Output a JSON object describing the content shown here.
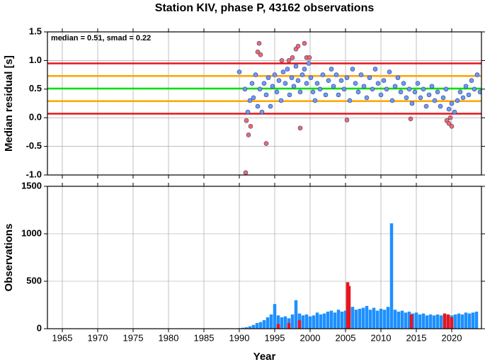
{
  "chart_data": [
    {
      "type": "scatter",
      "title": "Station KIV, phase P, 43162 observations",
      "annotation": "median = 0.51, smad = 0.22",
      "y_label": "Median residual [s]",
      "xlim": [
        1962.9,
        2024.2
      ],
      "xticks": [
        1965,
        1970,
        1975,
        1980,
        1985,
        1990,
        1995,
        2000,
        2005,
        2010,
        2015,
        2020
      ],
      "ylim": [
        -1.0,
        1.5
      ],
      "yticks": [
        {
          "value": -1.0,
          "label": "-1.0"
        },
        {
          "value": -0.5,
          "label": "-0.5"
        },
        {
          "value": 0.0,
          "label": "0.0"
        },
        {
          "value": 0.5,
          "label": "0.5"
        },
        {
          "value": 1.0,
          "label": "1.0"
        },
        {
          "value": 1.5,
          "label": "1.5"
        }
      ],
      "grid": true,
      "hlines": [
        {
          "value": 0.95,
          "color": "#e8141e"
        },
        {
          "value": 0.73,
          "color": "#ffa500"
        },
        {
          "value": 0.51,
          "color": "#00e000"
        },
        {
          "value": 0.29,
          "color": "#ffa500"
        },
        {
          "value": 0.07,
          "color": "#e8141e"
        }
      ],
      "series": [
        {
          "color": "#6b9cf0",
          "x": [
            1990.0,
            1990.8,
            1991.2,
            1991.5,
            1991.8,
            1992.0,
            1992.3,
            1992.6,
            1992.9,
            1993.2,
            1993.5,
            1993.8,
            1994.1,
            1994.4,
            1994.7,
            1995.0,
            1995.3,
            1995.6,
            1995.9,
            1996.2,
            1996.5,
            1996.8,
            1997.1,
            1997.4,
            1997.7,
            1998.0,
            1998.3,
            1998.6,
            1998.9,
            1999.2,
            1999.5,
            1999.8,
            2000.1,
            2000.4,
            2000.7,
            2001.0,
            2001.4,
            2001.8,
            2002.2,
            2002.6,
            2003.0,
            2003.3,
            2003.7,
            2004.0,
            2004.4,
            2004.8,
            2005.2,
            2005.6,
            2006.0,
            2006.4,
            2006.8,
            2007.2,
            2007.6,
            2008.0,
            2008.4,
            2008.8,
            2009.2,
            2009.6,
            2010.0,
            2010.4,
            2010.8,
            2011.2,
            2011.6,
            2012.0,
            2012.4,
            2012.8,
            2013.2,
            2013.6,
            2014.0,
            2014.4,
            2014.8,
            2015.2,
            2015.6,
            2016.0,
            2016.4,
            2016.8,
            2017.2,
            2017.6,
            2018.0,
            2018.4,
            2018.8,
            2019.2,
            2019.6,
            2020.0,
            2020.4,
            2020.8,
            2021.2,
            2021.6,
            2022.0,
            2022.4,
            2022.8,
            2023.2,
            2023.6,
            2024.0
          ],
          "values": [
            0.8,
            0.5,
            0.1,
            0.3,
            0.6,
            0.35,
            0.75,
            0.2,
            0.5,
            0.1,
            0.6,
            0.4,
            0.7,
            0.2,
            0.55,
            0.75,
            0.45,
            0.65,
            0.3,
            0.8,
            0.6,
            0.85,
            0.4,
            0.7,
            0.55,
            0.9,
            0.65,
            0.45,
            0.75,
            0.85,
            0.6,
            0.95,
            0.7,
            0.45,
            0.3,
            0.6,
            0.5,
            0.75,
            0.4,
            0.65,
            0.85,
            0.55,
            0.75,
            0.4,
            0.65,
            0.5,
            0.7,
            0.3,
            0.85,
            0.6,
            0.45,
            0.75,
            0.55,
            0.35,
            0.7,
            0.5,
            0.85,
            0.6,
            0.4,
            0.65,
            0.5,
            0.8,
            0.3,
            0.55,
            0.7,
            0.45,
            0.6,
            0.35,
            0.5,
            0.25,
            0.45,
            0.6,
            0.35,
            0.5,
            0.2,
            0.4,
            0.55,
            0.3,
            0.45,
            0.2,
            0.35,
            0.5,
            0.15,
            0.25,
            0.1,
            0.3,
            0.45,
            0.35,
            0.55,
            0.4,
            0.65,
            0.5,
            0.75,
            0.45
          ]
        },
        {
          "color": "#f46a5e",
          "x": [
            1990.9,
            1991.0,
            1991.3,
            1991.6,
            1992.6,
            1992.8,
            1993.0,
            1993.8,
            1996.0,
            1997.0,
            1997.5,
            1998.0,
            1998.3,
            1998.6,
            1999.2,
            1999.5,
            1999.9,
            2005.2,
            2014.2,
            2019.3,
            2019.6,
            2020.0,
            2019.8
          ],
          "values": [
            -0.96,
            -0.05,
            -0.3,
            -0.15,
            1.15,
            1.3,
            1.1,
            -0.45,
            1.0,
            1.0,
            1.05,
            1.2,
            1.25,
            -0.18,
            1.3,
            1.05,
            1.05,
            -0.04,
            -0.02,
            -0.05,
            -0.1,
            -0.15,
            0.0
          ]
        }
      ]
    },
    {
      "type": "bar",
      "y_label": "Observations",
      "x_label": "Year",
      "xlim": [
        1962.9,
        2024.2
      ],
      "xticks": [
        1965,
        1970,
        1975,
        1980,
        1985,
        1990,
        1995,
        2000,
        2005,
        2010,
        2015,
        2020
      ],
      "ylim": [
        0,
        1500
      ],
      "yticks": [
        0,
        500,
        1000,
        1500
      ],
      "grid": true,
      "series": [
        {
          "color": "#1e90ff",
          "x": [
            1990,
            1990.5,
            1991,
            1991.5,
            1992,
            1992.5,
            1993,
            1993.5,
            1994,
            1994.5,
            1995,
            1995.5,
            1996,
            1996.5,
            1997,
            1997.5,
            1998,
            1998.5,
            1999,
            1999.5,
            2000,
            2000.5,
            2001,
            2001.5,
            2002,
            2002.5,
            2003,
            2003.5,
            2004,
            2004.5,
            2005,
            2005.5,
            2006,
            2006.5,
            2007,
            2007.5,
            2008,
            2008.5,
            2009,
            2009.5,
            2010,
            2010.5,
            2011,
            2011.5,
            2012,
            2012.5,
            2013,
            2013.5,
            2014,
            2014.5,
            2015,
            2015.5,
            2016,
            2016.5,
            2017,
            2017.5,
            2018,
            2018.5,
            2019,
            2019.5,
            2020,
            2020.5,
            2021,
            2021.5,
            2022,
            2022.5,
            2023,
            2023.5
          ],
          "values": [
            5,
            10,
            15,
            25,
            40,
            60,
            70,
            90,
            120,
            150,
            260,
            140,
            120,
            130,
            110,
            150,
            300,
            160,
            140,
            150,
            130,
            140,
            170,
            150,
            160,
            180,
            190,
            170,
            200,
            180,
            190,
            210,
            230,
            200,
            210,
            220,
            240,
            200,
            220,
            190,
            210,
            200,
            230,
            1110,
            200,
            180,
            190,
            170,
            180,
            160,
            170,
            150,
            160,
            140,
            150,
            140,
            150,
            140,
            150,
            130,
            140,
            150,
            160,
            150,
            170,
            160,
            170,
            180
          ]
        },
        {
          "color": "#e8141e",
          "x": [
            1995.5,
            1997,
            1998.5,
            2005.3,
            2005.5,
            2014.3,
            2019,
            2019.5,
            2020
          ],
          "values": [
            50,
            60,
            90,
            490,
            450,
            150,
            160,
            150,
            120
          ]
        }
      ]
    }
  ]
}
